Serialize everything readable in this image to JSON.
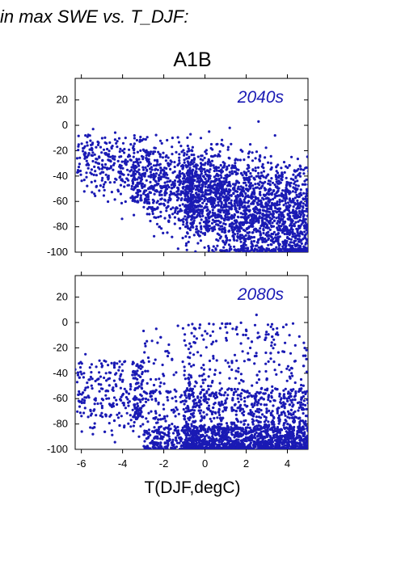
{
  "figure": {
    "title": "in max SWE vs. T_DJF:",
    "scenario": "A1B",
    "xlabel": "T(DJF,degC)",
    "point_color": "#1a1ab4"
  },
  "chart_data": [
    {
      "type": "scatter",
      "title": "2040s",
      "xlabel": "",
      "ylabel": "",
      "xlim": [
        -6.3,
        5
      ],
      "ylim": [
        -100,
        37
      ],
      "xticks": [
        -6,
        -4,
        -2,
        0,
        2,
        4
      ],
      "yticks": [
        -100,
        -80,
        -60,
        -40,
        -20,
        0,
        20
      ],
      "x_tick_labels_shown": false,
      "approx_point_count": 3000,
      "distribution": "dense cloud spanning -6 to 5 degC; at colder temperatures (-6 to -2) points lie mostly between -10 and -60; toward warmer temperatures (0 to 5) points spread from about 0 down to -100, densest between -60 and -90",
      "points": [
        [
          -6.2,
          -26
        ],
        [
          -5.8,
          -8
        ],
        [
          -5.5,
          -18
        ],
        [
          -5.2,
          -13
        ],
        [
          -5.0,
          -37
        ],
        [
          -4.8,
          -22
        ],
        [
          -4.6,
          -45
        ],
        [
          -4.4,
          -30
        ],
        [
          -4.2,
          -52
        ],
        [
          -4.0,
          -20
        ],
        [
          -3.8,
          -42
        ],
        [
          -3.6,
          -15
        ],
        [
          -3.4,
          -60
        ],
        [
          -3.2,
          -35
        ],
        [
          -3.0,
          -25
        ],
        [
          -2.8,
          -70
        ],
        [
          -2.6,
          -48
        ],
        [
          -2.4,
          -18
        ],
        [
          -2.2,
          -80
        ],
        [
          -2.0,
          -62
        ],
        [
          -1.8,
          -30
        ],
        [
          -1.6,
          -88
        ],
        [
          -1.4,
          -55
        ],
        [
          -1.2,
          -75
        ],
        [
          -1.0,
          -22
        ],
        [
          -0.8,
          -92
        ],
        [
          -0.6,
          -45
        ],
        [
          -0.4,
          -68
        ],
        [
          -0.2,
          -10
        ],
        [
          0.0,
          -85
        ],
        [
          0.2,
          -5
        ],
        [
          0.4,
          -58
        ],
        [
          0.6,
          -95
        ],
        [
          0.8,
          -35
        ],
        [
          1.0,
          -78
        ],
        [
          1.2,
          -2
        ],
        [
          1.4,
          -88
        ],
        [
          1.6,
          -50
        ],
        [
          1.8,
          -97
        ],
        [
          2.0,
          -65
        ],
        [
          2.2,
          -15
        ],
        [
          2.4,
          -82
        ],
        [
          2.6,
          3
        ],
        [
          2.8,
          -92
        ],
        [
          3.0,
          -40
        ],
        [
          3.2,
          -70
        ],
        [
          3.4,
          -8
        ],
        [
          3.6,
          -95
        ],
        [
          3.8,
          -55
        ],
        [
          4.0,
          -85
        ],
        [
          4.2,
          -25
        ],
        [
          4.4,
          -98
        ],
        [
          4.6,
          -62
        ],
        [
          4.8,
          -38
        ],
        [
          5.0,
          -90
        ]
      ]
    },
    {
      "type": "scatter",
      "title": "2080s",
      "xlabel": "T(DJF,degC)",
      "ylabel": "",
      "xlim": [
        -6.3,
        5
      ],
      "ylim": [
        -100,
        37
      ],
      "xticks": [
        -6,
        -4,
        -2,
        0,
        2,
        4
      ],
      "yticks": [
        -100,
        -80,
        -60,
        -40,
        -20,
        0,
        20
      ],
      "x_tick_labels_shown": true,
      "approx_point_count": 3000,
      "distribution": "points concentrated near the bottom (-80 to -100) across -3 to 5 degC; sparser spread up to about 0 for warmer temperatures, a few points reaching +6 near 2.5 degC; cold side (-6 to -3) mostly between -25 and -70",
      "points": [
        [
          -6.3,
          -37
        ],
        [
          -6.2,
          -47
        ],
        [
          -5.8,
          -25
        ],
        [
          -5.5,
          -33
        ],
        [
          -5.2,
          -64
        ],
        [
          -5.0,
          -35
        ],
        [
          -4.8,
          -40
        ],
        [
          -4.6,
          -65
        ],
        [
          -4.4,
          -34
        ],
        [
          -4.2,
          -75
        ],
        [
          -4.0,
          -38
        ],
        [
          -3.8,
          -55
        ],
        [
          -3.6,
          -82
        ],
        [
          -3.4,
          -44
        ],
        [
          -3.2,
          -90
        ],
        [
          -3.0,
          -60
        ],
        [
          -2.8,
          -48
        ],
        [
          -2.6,
          -95
        ],
        [
          -2.4,
          -70
        ],
        [
          -2.2,
          -88
        ],
        [
          -2.0,
          -42
        ],
        [
          -1.8,
          -97
        ],
        [
          -1.6,
          -80
        ],
        [
          -1.4,
          -62
        ],
        [
          -1.2,
          -92
        ],
        [
          -1.0,
          -35
        ],
        [
          -0.8,
          -2
        ],
        [
          -0.6,
          -85
        ],
        [
          -0.4,
          -95
        ],
        [
          -0.2,
          -55
        ],
        [
          0.0,
          -90
        ],
        [
          0.2,
          -1
        ],
        [
          0.4,
          -98
        ],
        [
          0.6,
          -75
        ],
        [
          0.8,
          -92
        ],
        [
          1.0,
          -30
        ],
        [
          1.2,
          -96
        ],
        [
          1.4,
          -85
        ],
        [
          1.6,
          -60
        ],
        [
          1.8,
          -99
        ],
        [
          2.0,
          -88
        ],
        [
          2.2,
          -20
        ],
        [
          2.4,
          -95
        ],
        [
          2.5,
          6
        ],
        [
          2.6,
          -78
        ],
        [
          2.8,
          -98
        ],
        [
          3.0,
          -45
        ],
        [
          3.2,
          -92
        ],
        [
          3.4,
          -85
        ],
        [
          3.6,
          -99
        ],
        [
          3.8,
          -65
        ],
        [
          4.0,
          -95
        ],
        [
          4.2,
          -40
        ],
        [
          4.4,
          -98
        ],
        [
          4.6,
          -80
        ],
        [
          4.8,
          -16
        ],
        [
          5.0,
          -95
        ]
      ]
    }
  ]
}
